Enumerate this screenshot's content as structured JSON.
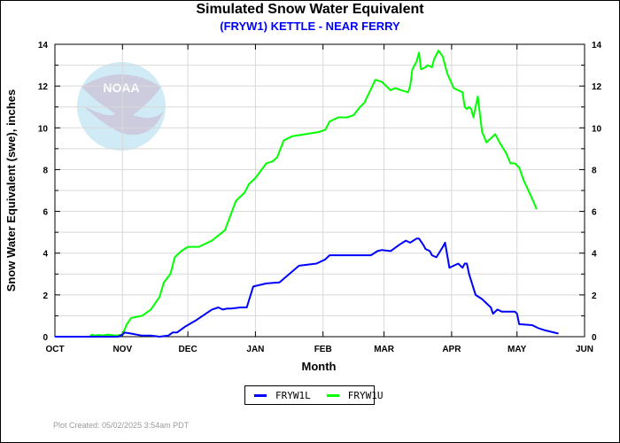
{
  "chart_data": {
    "type": "line",
    "title": "Simulated Snow Water Equivalent",
    "subtitle": "(FRYW1) KETTLE - NEAR FERRY",
    "xlabel": "Month",
    "ylabel": "Snow Water Equivalent (swe),  inches",
    "x_unit": "days since Oct 1",
    "xlim": [
      0,
      243
    ],
    "ylim": [
      0,
      14
    ],
    "grid": true,
    "x_ticks": [
      {
        "label": "OCT",
        "day": 0
      },
      {
        "label": "NOV",
        "day": 31
      },
      {
        "label": "DEC",
        "day": 61
      },
      {
        "label": "JAN",
        "day": 92
      },
      {
        "label": "FEB",
        "day": 123
      },
      {
        "label": "MAR",
        "day": 151
      },
      {
        "label": "APR",
        "day": 182
      },
      {
        "label": "MAY",
        "day": 212
      },
      {
        "label": "JUN",
        "day": 243
      }
    ],
    "y_ticks": [
      "0",
      "2",
      "4",
      "6",
      "8",
      "10",
      "12",
      "14"
    ],
    "y_tick_values": [
      0,
      2,
      4,
      6,
      8,
      10,
      12,
      14
    ],
    "legend_position": "bottom-center",
    "series": [
      {
        "name": "FRYW1L",
        "color": "#0000ff",
        "x": [
          0,
          29,
          31,
          32,
          35,
          40,
          44,
          48,
          52,
          54,
          56,
          60,
          65,
          72,
          75,
          77,
          79,
          81,
          85,
          88,
          91,
          97,
          103,
          112,
          120,
          124,
          126,
          134,
          142,
          145,
          148,
          150,
          154,
          158,
          161,
          163,
          166,
          167,
          169,
          170,
          172,
          173,
          175,
          178,
          179,
          181,
          185,
          187,
          188,
          189,
          190,
          193,
          196,
          200,
          201,
          203,
          205,
          211,
          212,
          213,
          219,
          222,
          225,
          231
        ],
        "y": [
          0,
          0,
          0.1,
          0.2,
          0.15,
          0.05,
          0.05,
          0.0,
          0.05,
          0.2,
          0.2,
          0.5,
          0.8,
          1.3,
          1.4,
          1.3,
          1.35,
          1.35,
          1.4,
          1.4,
          2.4,
          2.55,
          2.6,
          3.4,
          3.5,
          3.7,
          3.9,
          3.9,
          3.9,
          3.9,
          4.1,
          4.15,
          4.1,
          4.4,
          4.6,
          4.5,
          4.7,
          4.7,
          4.4,
          4.2,
          4.1,
          3.9,
          3.8,
          4.3,
          4.5,
          3.3,
          3.5,
          3.3,
          3.5,
          3.5,
          3.0,
          2.0,
          1.8,
          1.4,
          1.1,
          1.3,
          1.2,
          1.2,
          1.1,
          0.6,
          0.55,
          0.4,
          0.3,
          0.15
        ]
      },
      {
        "name": "FRYW1U",
        "color": "#00ff00",
        "x": [
          0,
          16,
          17,
          18,
          20,
          22,
          24,
          28,
          31,
          33,
          35,
          40,
          44,
          48,
          50,
          53,
          55,
          58,
          61,
          66,
          72,
          78,
          83,
          87,
          89,
          92,
          97,
          100,
          102,
          105,
          109,
          115,
          121,
          124,
          126,
          130,
          134,
          137,
          140,
          142,
          147,
          150,
          154,
          156,
          159,
          162,
          163,
          164,
          166,
          167,
          168,
          170,
          171,
          173,
          174,
          176,
          178,
          180,
          183,
          187,
          188,
          189,
          190,
          191,
          192,
          194,
          196,
          198,
          200,
          202,
          204,
          207,
          209,
          211,
          213,
          215,
          219,
          221
        ],
        "y": [
          0,
          0,
          0.1,
          0.05,
          0.08,
          0.05,
          0.1,
          0.05,
          0.1,
          0.6,
          0.9,
          1.0,
          1.3,
          1.9,
          2.6,
          3.0,
          3.8,
          4.1,
          4.3,
          4.3,
          4.6,
          5.1,
          6.5,
          6.9,
          7.3,
          7.6,
          8.3,
          8.4,
          8.6,
          9.4,
          9.6,
          9.7,
          9.8,
          9.9,
          10.3,
          10.5,
          10.5,
          10.6,
          11.0,
          11.2,
          12.3,
          12.2,
          11.8,
          11.9,
          11.8,
          11.7,
          12.0,
          12.8,
          13.2,
          13.6,
          12.8,
          12.9,
          13.0,
          12.9,
          13.3,
          13.7,
          13.4,
          12.6,
          11.9,
          11.7,
          11.0,
          10.9,
          11.0,
          10.9,
          10.5,
          11.5,
          9.8,
          9.3,
          9.5,
          9.7,
          9.3,
          8.8,
          8.3,
          8.3,
          8.1,
          7.5,
          6.6,
          6.1
        ]
      }
    ]
  },
  "logo": {
    "text": "NOAA"
  },
  "legend": {
    "items": [
      "FRYW1L",
      "FRYW1U"
    ]
  },
  "footer": {
    "text": "Plot Created: 05/02/2025 3:54am PDT"
  }
}
